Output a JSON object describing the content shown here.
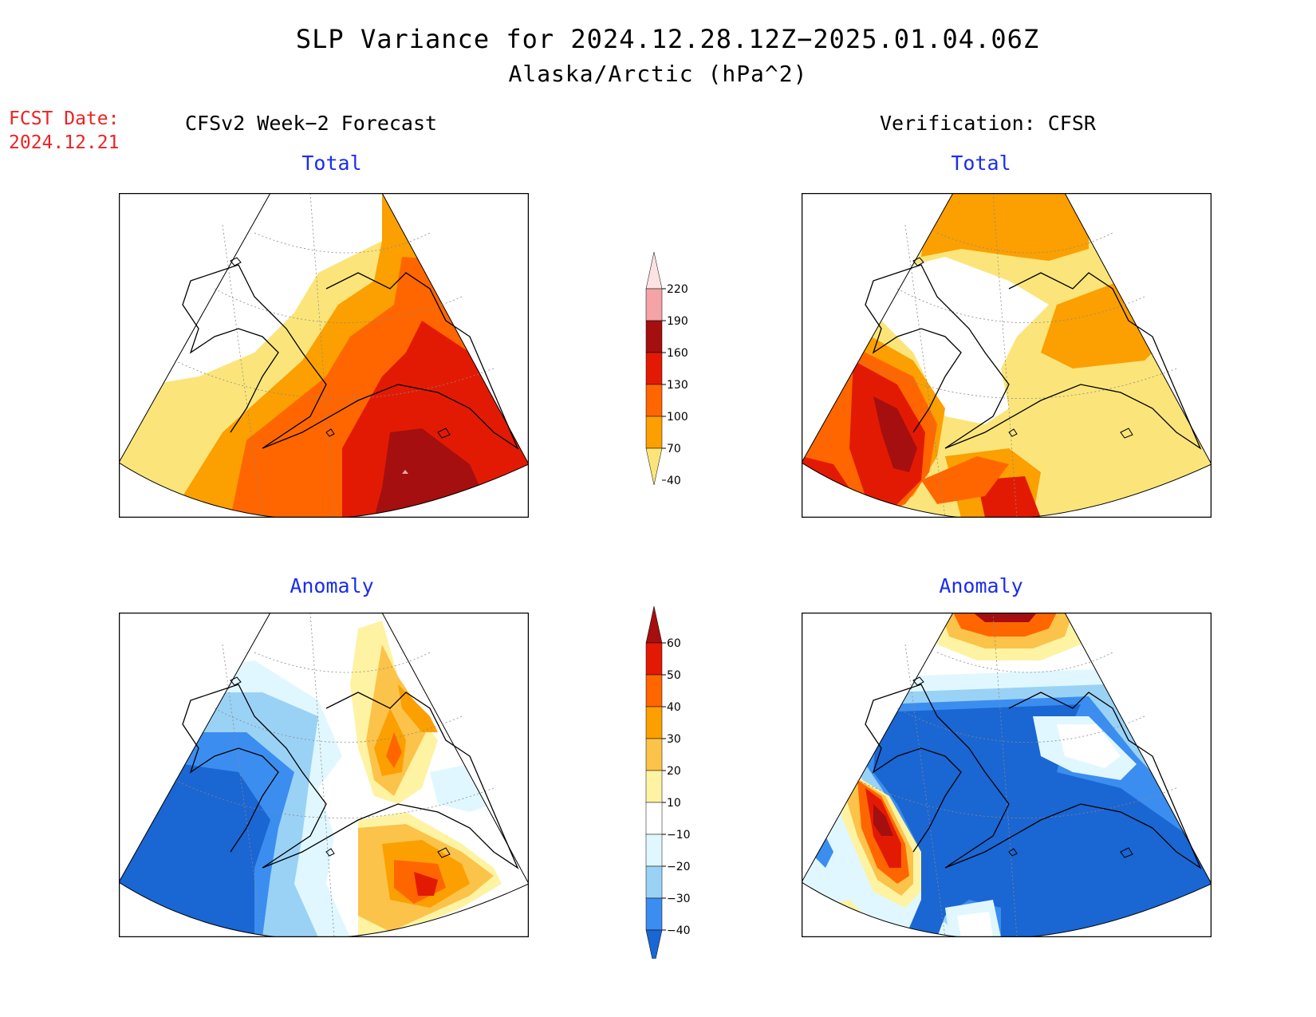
{
  "title": {
    "line1": "SLP Variance for 2024.12.28.12Z−2025.01.04.06Z",
    "line2": "Alaska/Arctic (hPa^2)"
  },
  "forecast_date": {
    "label": "FCST Date:",
    "value": "2024.12.21"
  },
  "columns": {
    "left": "CFSv2 Week−2 Forecast",
    "right": "Verification: CFSR"
  },
  "panels": {
    "top_left": "Total",
    "top_right": "Total",
    "bottom_left": "Anomaly",
    "bottom_right": "Anomaly"
  },
  "colorbars": {
    "total": {
      "levels": [
        "220",
        "190",
        "160",
        "130",
        "100",
        "70",
        "40"
      ],
      "colors": [
        "#fbe3e3",
        "#f4a3a6",
        "#a50f0f",
        "#e31a03",
        "#ff6600",
        "#fba000",
        "#fbe57a"
      ]
    },
    "anomaly": {
      "levels": [
        "60",
        "50",
        "40",
        "30",
        "20",
        "10",
        "−10",
        "−20",
        "−30",
        "−40"
      ],
      "colors": [
        "#a50f0f",
        "#e31a03",
        "#ff6600",
        "#fba000",
        "#fbc349",
        "#fdf3a3",
        "#ffffff",
        "#e0f7ff",
        "#9ad2f6",
        "#3b8ef0",
        "#1a66d3"
      ]
    }
  },
  "map_colors": {
    "total_40_70": "#fbe57a",
    "total_70_100": "#fba000",
    "total_100_130": "#ff6600",
    "total_130_160": "#e31a03",
    "total_160_190": "#a50f0f",
    "anom_neg_10_20": "#e0f7ff",
    "anom_neg_20_30": "#9ad2f6",
    "anom_neg_30_40": "#3b8ef0",
    "anom_lt_neg_40": "#1a66d3",
    "anom_10_20": "#fdf3a3",
    "anom_20_30": "#fbc349",
    "anom_30_40": "#fba000",
    "anom_40_50": "#ff6600",
    "anom_50_60": "#e31a03",
    "anom_gt_60": "#a50f0f"
  }
}
